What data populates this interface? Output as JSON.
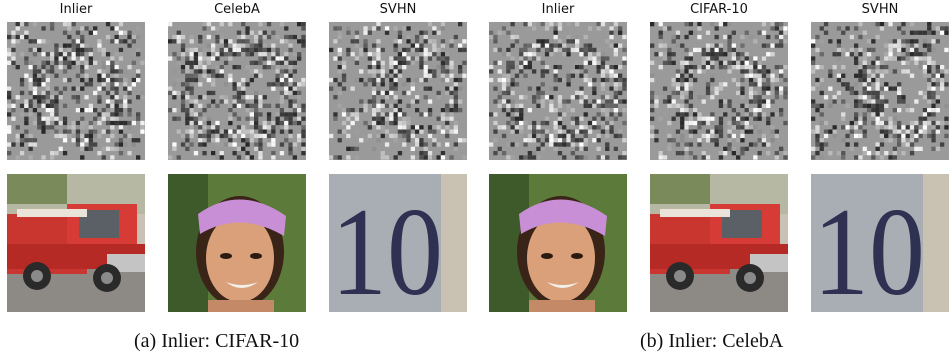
{
  "panels": [
    {
      "caption": "(a) Inlier: CIFAR-10",
      "columns": [
        "Inlier",
        "CelebA",
        "SVHN"
      ]
    },
    {
      "caption": "(b) Inlier: CelebA",
      "columns": [
        "Inlier",
        "CIFAR-10",
        "SVHN"
      ]
    }
  ],
  "colors": {
    "noise_bg": "#9a9a9a",
    "truck_red": "#d23434",
    "headband": "#c98fd6",
    "skin": "#d9a07a",
    "svhn_bg": "#a9adb4",
    "svhn_digit": "#2e3152"
  }
}
